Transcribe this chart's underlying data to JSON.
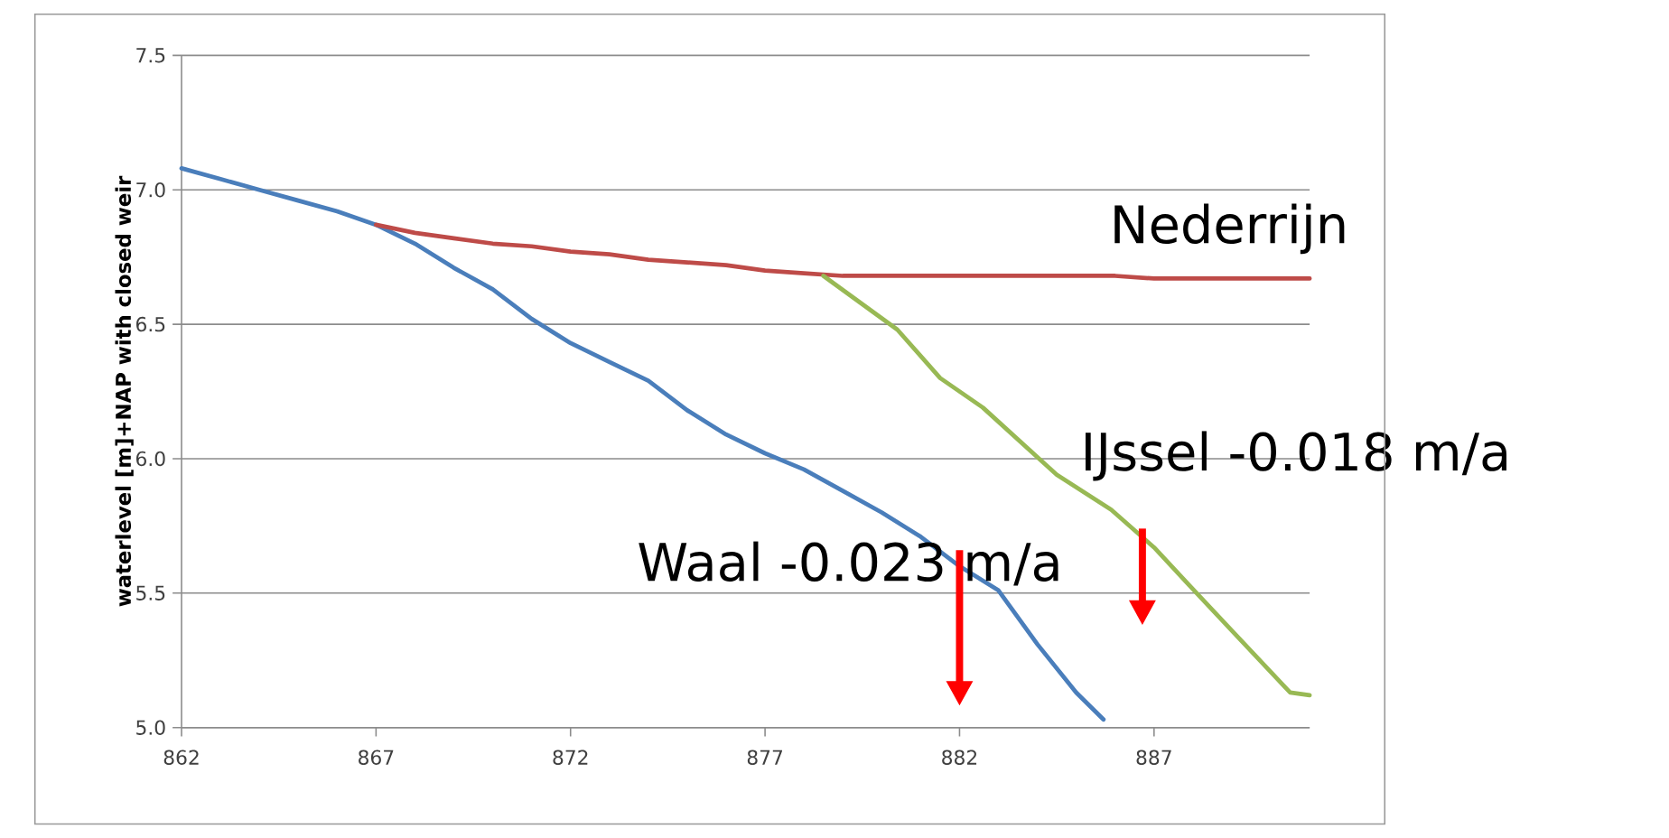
{
  "chart_data": {
    "type": "line",
    "ylabel": "waterlevel [m]+NAP with closed weir",
    "xlim": [
      862,
      891
    ],
    "xticks": [
      862,
      867,
      872,
      877,
      882,
      887
    ],
    "ylim": [
      5.0,
      7.5
    ],
    "yticks": [
      {
        "value": 5,
        "label": "5.0"
      },
      5.5,
      {
        "value": 6,
        "label": "6.0"
      },
      6.5,
      {
        "value": 7,
        "label": "7.0"
      },
      7.5
    ],
    "grid": "y",
    "legend": false,
    "marker": "none",
    "series": [
      {
        "name": "Waal -0.023 m/a",
        "color": "#4a7ebb",
        "x": [
          862,
          863,
          864,
          865,
          866,
          867,
          868,
          869,
          870,
          871,
          872,
          873,
          874,
          875,
          876,
          877,
          878,
          879,
          880,
          881,
          882,
          883,
          884,
          885,
          885.7
        ],
        "values": [
          7.08,
          7.04,
          7.0,
          6.96,
          6.92,
          6.87,
          6.8,
          6.71,
          6.63,
          6.52,
          6.43,
          6.36,
          6.29,
          6.18,
          6.09,
          6.02,
          5.96,
          5.88,
          5.8,
          5.71,
          5.6,
          5.51,
          5.31,
          5.13,
          5.03
        ]
      },
      {
        "name": "Nederrijn",
        "color": "#be4b48",
        "x": [
          867,
          868,
          869,
          870,
          871,
          872,
          873,
          874,
          875,
          876,
          877,
          878,
          879,
          886,
          887,
          891
        ],
        "values": [
          6.87,
          6.84,
          6.82,
          6.8,
          6.79,
          6.77,
          6.76,
          6.74,
          6.73,
          6.72,
          6.7,
          6.69,
          6.68,
          6.68,
          6.67,
          6.67
        ]
      },
      {
        "name": "IJssel -0.018 m/a",
        "color": "#98b954",
        "x": [
          878.5,
          880.4,
          881.5,
          882.6,
          884.5,
          885.9,
          887,
          887.9,
          889,
          890.5,
          891
        ],
        "values": [
          6.68,
          6.48,
          6.3,
          6.19,
          5.94,
          5.81,
          5.67,
          5.53,
          5.36,
          5.13,
          5.12
        ]
      }
    ]
  }
}
